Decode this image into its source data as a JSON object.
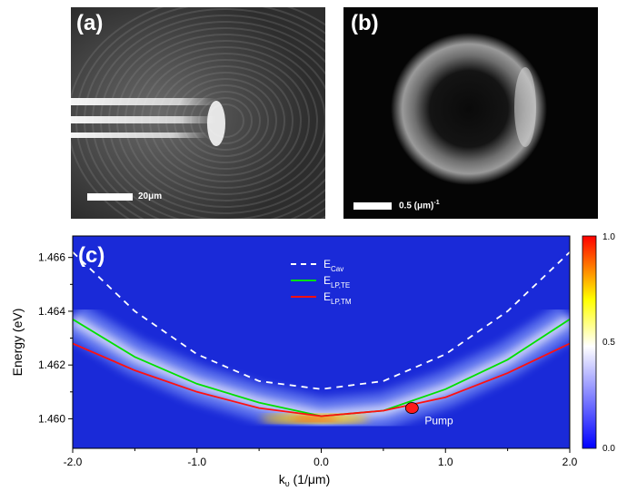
{
  "panel_a": {
    "label": "(a)",
    "scale_label": "20μm"
  },
  "panel_b": {
    "label": "(b)",
    "scale_label": "0.5 (μm)",
    "scale_label_sup": "-1"
  },
  "chart_data": {
    "type": "heatmap",
    "panel_label": "(c)",
    "xlabel": "k",
    "xlabel_sub": "υ",
    "xlabel_unit": " (1/μm)",
    "ylabel": "Energy (eV)",
    "xlim": [
      -2.0,
      2.0
    ],
    "ylim": [
      1.4589,
      1.4668
    ],
    "x_ticks": [
      "-2.0",
      "-1.0",
      "0.0",
      "1.0",
      "2.0"
    ],
    "x_tick_values": [
      -2.0,
      -1.0,
      0.0,
      1.0,
      2.0
    ],
    "y_ticks": [
      "1.460",
      "1.462",
      "1.464",
      "1.466"
    ],
    "y_tick_values": [
      1.46,
      1.462,
      1.464,
      1.466
    ],
    "colorbar": {
      "min_label": "0.0",
      "mid_label": "0.5",
      "max_label": "1.0",
      "colors": [
        "#0000ff",
        "#ffffff",
        "#ffff00",
        "#ff0000"
      ]
    },
    "series": [
      {
        "name": "E",
        "sub": "Cav",
        "style": "dashed",
        "color": "#ffffff",
        "x": [
          -2.0,
          -1.5,
          -1.0,
          -0.5,
          0.0,
          0.5,
          1.0,
          1.5,
          2.0
        ],
        "y": [
          1.4662,
          1.464,
          1.4624,
          1.4614,
          1.4611,
          1.4614,
          1.4624,
          1.464,
          1.4662
        ]
      },
      {
        "name": "E",
        "sub": "LP,TE",
        "style": "solid",
        "color": "#00e000",
        "x": [
          -2.0,
          -1.5,
          -1.0,
          -0.5,
          0.0,
          0.5,
          1.0,
          1.5,
          2.0
        ],
        "y": [
          1.4637,
          1.4623,
          1.4613,
          1.4606,
          1.4601,
          1.4603,
          1.4611,
          1.4622,
          1.4637
        ]
      },
      {
        "name": "E",
        "sub": "LP,TM",
        "style": "solid",
        "color": "#ff1010",
        "x": [
          -2.0,
          -1.5,
          -1.0,
          -0.5,
          0.0,
          0.5,
          1.0,
          1.5,
          2.0
        ],
        "y": [
          1.4628,
          1.4618,
          1.461,
          1.4604,
          1.4601,
          1.4603,
          1.4608,
          1.4617,
          1.4628
        ]
      }
    ],
    "annotations": [
      {
        "text": "Pump",
        "x": 0.73,
        "y": 1.4604,
        "marker_color": "#ff1a1a"
      }
    ],
    "background_color": "#1a2ad8",
    "band_color_peak": "#ffcc00"
  }
}
